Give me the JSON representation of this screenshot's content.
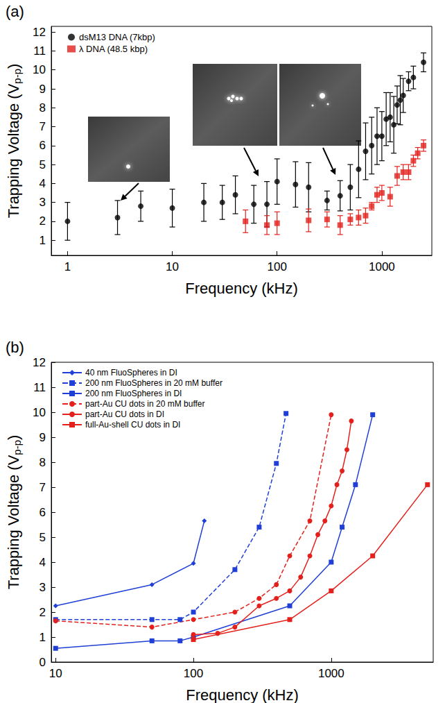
{
  "chart_data": [
    {
      "type": "scatter",
      "panel": "(a)",
      "xlabel": "Frequency (kHz)",
      "ylabel": "Trapping Voltage (Vp-p)",
      "ylabel_subscript": "p-p",
      "log": "x",
      "grid": false,
      "legend": "upper left",
      "xlim": [
        0.7,
        3000
      ],
      "xticks": [
        1,
        10,
        100,
        1000
      ],
      "ylim": [
        0.2,
        12.3
      ],
      "yticks": [
        1,
        2,
        3,
        4,
        5,
        6,
        7,
        8,
        9,
        10,
        11,
        12
      ],
      "series": [
        {
          "name": "dsM13 DNA (7kbp)",
          "color": "#000000",
          "marker": "circle",
          "x": [
            1,
            3,
            5,
            10,
            20,
            30,
            40,
            60,
            80,
            100,
            150,
            200,
            300,
            400,
            500,
            600,
            700,
            800,
            900,
            1000,
            1100,
            1200,
            1300,
            1400,
            1500,
            1600,
            1800,
            2000,
            2500
          ],
          "values": [
            2.0,
            2.2,
            2.8,
            2.7,
            3.0,
            3.0,
            3.4,
            2.9,
            2.9,
            4.1,
            3.95,
            3.8,
            3.1,
            3.35,
            3.8,
            4.75,
            5.7,
            6.0,
            6.5,
            6.5,
            7.4,
            7.5,
            7.1,
            8.15,
            8.4,
            8.65,
            9.4,
            9.6,
            10.4
          ],
          "errors": [
            1.0,
            0.9,
            0.8,
            1.0,
            1.0,
            0.9,
            1.0,
            1.0,
            1.2,
            1.2,
            1.2,
            1.3,
            0.5,
            0.8,
            1.2,
            1.5,
            1.5,
            1.5,
            1.5,
            1.3,
            1.4,
            1.3,
            1.5,
            1.0,
            1.3,
            0.9,
            0.5,
            0.6,
            0.5
          ]
        },
        {
          "name": "λ DNA (48.5 kbp)",
          "color": "#e3201b",
          "marker": "square",
          "x": [
            50,
            80,
            100,
            200,
            300,
            400,
            500,
            600,
            700,
            800,
            900,
            1000,
            1200,
            1400,
            1600,
            1800,
            2000,
            2200,
            2500
          ],
          "values": [
            2.0,
            1.8,
            1.9,
            2.05,
            2.1,
            1.8,
            2.1,
            2.2,
            2.3,
            2.8,
            3.4,
            3.5,
            3.3,
            4.4,
            4.6,
            4.6,
            5.2,
            5.6,
            6.0
          ],
          "errors": [
            0.6,
            0.5,
            0.6,
            0.6,
            0.4,
            0.5,
            0.3,
            0.4,
            0.4,
            0.2,
            0.4,
            0.4,
            0.5,
            0.5,
            0.4,
            0.4,
            0.3,
            0.3,
            0.3
          ]
        }
      ]
    },
    {
      "type": "line",
      "panel": "(b)",
      "xlabel": "Frequency (kHz)",
      "ylabel": "Trapping Voltage (Vp-p)",
      "ylabel_subscript": "p-p",
      "log": "x",
      "grid": false,
      "legend": "upper left",
      "xlim": [
        9.3,
        5500
      ],
      "xticks": [
        10,
        100,
        1000
      ],
      "ylim": [
        0,
        12
      ],
      "yticks": [
        0,
        1,
        2,
        3,
        4,
        5,
        6,
        7,
        8,
        9,
        10,
        11,
        12
      ],
      "series": [
        {
          "name": "40 nm FluoSpheres in DI",
          "color": "#1f3fd6",
          "marker": "diamond",
          "line_style": "solid",
          "x": [
            10,
            50,
            100,
            120
          ],
          "values": [
            2.25,
            3.1,
            3.95,
            5.65
          ]
        },
        {
          "name": "200 nm FluoSpheres in 20 mM buffer",
          "color": "#1f3fd6",
          "marker": "square",
          "line_style": "dashed",
          "x": [
            10,
            50,
            80,
            100,
            200,
            300,
            400,
            470
          ],
          "values": [
            1.7,
            1.7,
            1.7,
            2.0,
            3.7,
            5.4,
            7.95,
            9.95
          ]
        },
        {
          "name": "200 nm FluoSpheres in DI",
          "color": "#1f3fd6",
          "marker": "square",
          "line_style": "solid",
          "x": [
            10,
            50,
            80,
            100,
            500,
            1000,
            1200,
            1500,
            2000
          ],
          "values": [
            0.55,
            0.85,
            0.85,
            1.0,
            2.25,
            4.0,
            5.4,
            7.1,
            9.9
          ]
        },
        {
          "name": "part-Au CU dots in 20 mM buffer",
          "color": "#e3201b",
          "marker": "circle",
          "line_style": "dashed",
          "x": [
            10,
            50,
            100,
            200,
            300,
            400,
            500,
            700,
            1000
          ],
          "values": [
            1.65,
            1.4,
            1.7,
            2.0,
            2.55,
            3.1,
            4.25,
            5.65,
            9.9
          ]
        },
        {
          "name": "part-Au CU dots in DI",
          "color": "#e3201b",
          "marker": "circle",
          "line_style": "solid",
          "x": [
            100,
            150,
            200,
            300,
            400,
            500,
            600,
            700,
            800,
            900,
            1000,
            1100,
            1200,
            1300,
            1400
          ],
          "values": [
            1.1,
            1.15,
            1.4,
            2.25,
            2.55,
            2.85,
            3.4,
            4.25,
            5.1,
            5.65,
            6.25,
            7.1,
            7.65,
            8.5,
            9.65
          ]
        },
        {
          "name": "full-Au-shell CU dots in DI",
          "color": "#e3201b",
          "marker": "square",
          "line_style": "solid",
          "x": [
            100,
            500,
            1000,
            2000,
            5000
          ],
          "values": [
            0.9,
            1.7,
            2.85,
            4.25,
            7.1
          ]
        }
      ]
    }
  ]
}
